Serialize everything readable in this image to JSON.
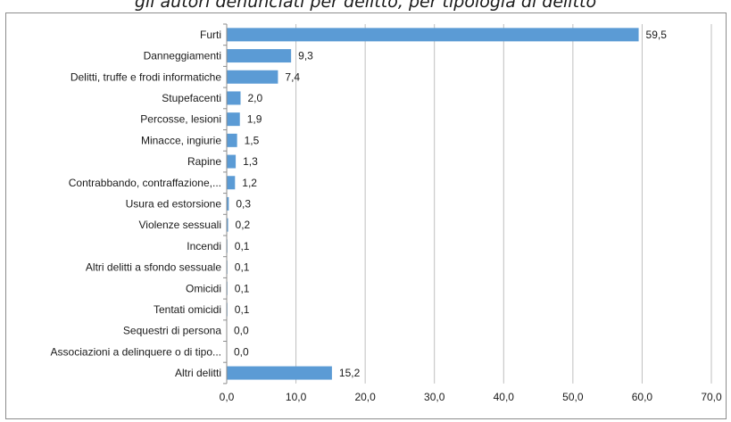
{
  "page": {
    "caption": "gli autori denunciati per delitto, per tipologia di delitto"
  },
  "colors": {
    "bar": "#5b9bd5",
    "grid": "#bfbfbf",
    "axis": "#8c8c8c",
    "text": "#1a1a1a"
  },
  "chart_data": {
    "type": "bar",
    "orientation": "horizontal",
    "title": "",
    "xlabel": "",
    "ylabel": "",
    "xlim": [
      0,
      70
    ],
    "x_ticks": [
      "0,0",
      "10,0",
      "20,0",
      "30,0",
      "40,0",
      "50,0",
      "60,0",
      "70,0"
    ],
    "grid": "vertical",
    "legend": "none",
    "categories": [
      "Furti",
      "Danneggiamenti",
      "Delitti, truffe e frodi informatiche",
      "Stupefacenti",
      "Percosse, lesioni",
      "Minacce, ingiurie",
      "Rapine",
      "Contrabbando, contraffazione,...",
      "Usura ed estorsione",
      "Violenze sessuali",
      "Incendi",
      "Altri delitti a sfondo sessuale",
      "Omicidi",
      "Tentati omicidi",
      "Sequestri di persona",
      "Associazioni a delinquere o di tipo...",
      "Altri delitti"
    ],
    "values": [
      59.5,
      9.3,
      7.4,
      2.0,
      1.9,
      1.5,
      1.3,
      1.2,
      0.3,
      0.2,
      0.1,
      0.1,
      0.1,
      0.1,
      0.0,
      0.0,
      15.2
    ],
    "value_labels": [
      "59,5",
      "9,3",
      "7,4",
      "2,0",
      "1,9",
      "1,5",
      "1,3",
      "1,2",
      "0,3",
      "0,2",
      "0,1",
      "0,1",
      "0,1",
      "0,1",
      "0,0",
      "0,0",
      "15,2"
    ]
  }
}
